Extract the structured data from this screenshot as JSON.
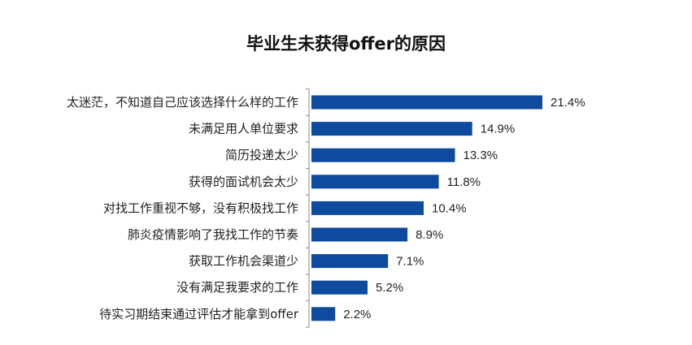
{
  "chart_data": {
    "type": "bar",
    "orientation": "horizontal",
    "title": "毕业生未获得offer的原因",
    "xlabel": "",
    "ylabel": "",
    "categories": [
      "太迷茫，不知道自己应该选择什么样的工作",
      "未满足用人单位要求",
      "简历投递太少",
      "获得的面试机会太少",
      "对找工作重视不够，没有积极找工作",
      "肺炎疫情影响了我找工作的节奏",
      "获取工作机会渠道少",
      "没有满足我要求的工作",
      "待实习期结束通过评估才能拿到offer"
    ],
    "values": [
      21.4,
      14.9,
      13.3,
      11.8,
      10.4,
      8.9,
      7.1,
      5.2,
      2.2
    ],
    "value_labels": [
      "21.4%",
      "14.9%",
      "13.3%",
      "11.8%",
      "10.4%",
      "8.9%",
      "7.1%",
      "5.2%",
      "2.2%"
    ],
    "xlim": [
      0,
      21.4
    ],
    "grid": false,
    "legend": "none",
    "bar_color": "#0e4a9e"
  }
}
